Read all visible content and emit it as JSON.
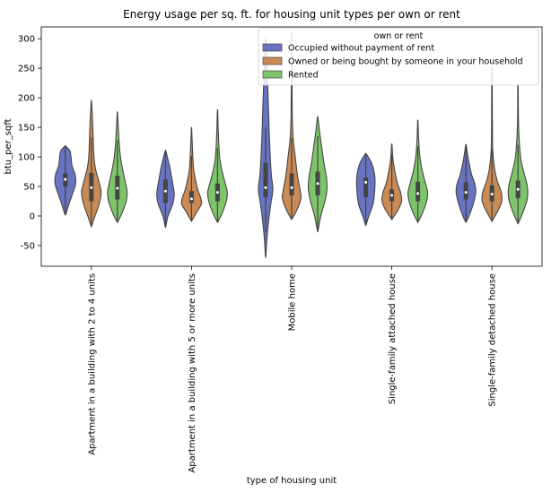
{
  "chart_data": {
    "type": "violin",
    "title": "Energy usage per sq. ft. for housing unit types per own or rent",
    "xlabel": "type of housing unit",
    "ylabel": "btu_per_sqft",
    "ylim": [
      -85,
      320
    ],
    "yticks": [
      -50,
      0,
      50,
      100,
      150,
      200,
      250,
      300
    ],
    "categories": [
      "Apartment in a building with 2 to 4 units",
      "Apartment in a building with 5 or more units",
      "Mobile home",
      "Single-family attached house",
      "Single-family detached house"
    ],
    "legend": {
      "title": "own or rent",
      "placement": "top-right"
    },
    "series": [
      {
        "name": "Occupied without payment of rent",
        "color": "#6873c2",
        "stats": [
          {
            "min": 3,
            "max": 118,
            "q1": 50,
            "median": 62,
            "q3": 72
          },
          {
            "min": -18,
            "max": 110,
            "q1": 22,
            "median": 42,
            "q3": 62
          },
          {
            "min": -68,
            "max": 300,
            "q1": 32,
            "median": 48,
            "q3": 90
          },
          {
            "min": -15,
            "max": 105,
            "q1": 32,
            "median": 57,
            "q3": 65
          },
          {
            "min": -10,
            "max": 120,
            "q1": 28,
            "median": 40,
            "q3": 57
          }
        ],
        "shape": [
          [
            [
              3,
              0.05
            ],
            [
              20,
              0.35
            ],
            [
              40,
              0.75
            ],
            [
              55,
              1.0
            ],
            [
              70,
              0.95
            ],
            [
              85,
              0.65
            ],
            [
              100,
              0.55
            ],
            [
              110,
              0.45
            ],
            [
              118,
              0.05
            ]
          ],
          [
            [
              -18,
              0.03
            ],
            [
              0,
              0.25
            ],
            [
              20,
              0.7
            ],
            [
              35,
              0.85
            ],
            [
              50,
              0.75
            ],
            [
              65,
              0.6
            ],
            [
              80,
              0.45
            ],
            [
              95,
              0.25
            ],
            [
              110,
              0.03
            ]
          ],
          [
            [
              -68,
              0.02
            ],
            [
              -40,
              0.12
            ],
            [
              -10,
              0.28
            ],
            [
              20,
              0.5
            ],
            [
              45,
              0.7
            ],
            [
              70,
              0.55
            ],
            [
              100,
              0.45
            ],
            [
              140,
              0.35
            ],
            [
              180,
              0.28
            ],
            [
              220,
              0.2
            ],
            [
              260,
              0.12
            ],
            [
              300,
              0.02
            ]
          ],
          [
            [
              -15,
              0.03
            ],
            [
              0,
              0.3
            ],
            [
              20,
              0.7
            ],
            [
              40,
              0.85
            ],
            [
              60,
              0.9
            ],
            [
              75,
              0.8
            ],
            [
              90,
              0.55
            ],
            [
              105,
              0.05
            ]
          ],
          [
            [
              -10,
              0.03
            ],
            [
              0,
              0.3
            ],
            [
              20,
              0.7
            ],
            [
              40,
              0.95
            ],
            [
              55,
              0.85
            ],
            [
              70,
              0.55
            ],
            [
              90,
              0.3
            ],
            [
              105,
              0.15
            ],
            [
              120,
              0.03
            ]
          ]
        ]
      },
      {
        "name": "Owned or being bought by someone in your household",
        "color": "#c98a55",
        "stats": [
          {
            "min": -17,
            "max": 193,
            "q1": 25,
            "median": 48,
            "q3": 73
          },
          {
            "min": -8,
            "max": 147,
            "q1": 22,
            "median": 29,
            "q3": 42
          },
          {
            "min": -5,
            "max": 305,
            "q1": 35,
            "median": 48,
            "q3": 72
          },
          {
            "min": -5,
            "max": 120,
            "q1": 25,
            "median": 35,
            "q3": 45
          },
          {
            "min": -8,
            "max": 245,
            "q1": 25,
            "median": 37,
            "q3": 52
          }
        ],
        "shape": [
          [
            [
              -17,
              0.02
            ],
            [
              0,
              0.35
            ],
            [
              20,
              0.75
            ],
            [
              40,
              0.95
            ],
            [
              60,
              0.7
            ],
            [
              80,
              0.4
            ],
            [
              100,
              0.25
            ],
            [
              130,
              0.18
            ],
            [
              160,
              0.12
            ],
            [
              193,
              0.02
            ]
          ],
          [
            [
              -8,
              0.03
            ],
            [
              5,
              0.45
            ],
            [
              20,
              0.95
            ],
            [
              30,
              0.9
            ],
            [
              45,
              0.6
            ],
            [
              60,
              0.4
            ],
            [
              80,
              0.2
            ],
            [
              110,
              0.1
            ],
            [
              147,
              0.02
            ]
          ],
          [
            [
              -5,
              0.03
            ],
            [
              10,
              0.5
            ],
            [
              30,
              0.9
            ],
            [
              50,
              0.75
            ],
            [
              70,
              0.55
            ],
            [
              100,
              0.35
            ],
            [
              130,
              0.15
            ],
            [
              170,
              0.06
            ],
            [
              240,
              0.03
            ],
            [
              305,
              0.02
            ]
          ],
          [
            [
              -5,
              0.03
            ],
            [
              10,
              0.6
            ],
            [
              25,
              0.95
            ],
            [
              40,
              0.85
            ],
            [
              55,
              0.55
            ],
            [
              75,
              0.3
            ],
            [
              95,
              0.12
            ],
            [
              120,
              0.02
            ]
          ],
          [
            [
              -8,
              0.03
            ],
            [
              10,
              0.6
            ],
            [
              25,
              0.95
            ],
            [
              40,
              0.9
            ],
            [
              60,
              0.5
            ],
            [
              80,
              0.25
            ],
            [
              110,
              0.08
            ],
            [
              160,
              0.04
            ],
            [
              245,
              0.02
            ]
          ]
        ]
      },
      {
        "name": "Rented",
        "color": "#7dc46a",
        "stats": [
          {
            "min": -10,
            "max": 173,
            "q1": 28,
            "median": 47,
            "q3": 68
          },
          {
            "min": -10,
            "max": 177,
            "q1": 25,
            "median": 40,
            "q3": 55
          },
          {
            "min": -25,
            "max": 166,
            "q1": 35,
            "median": 55,
            "q3": 75
          },
          {
            "min": -10,
            "max": 160,
            "q1": 25,
            "median": 38,
            "q3": 58
          },
          {
            "min": -12,
            "max": 220,
            "q1": 30,
            "median": 45,
            "q3": 60
          }
        ],
        "shape": [
          [
            [
              -10,
              0.03
            ],
            [
              5,
              0.45
            ],
            [
              25,
              0.85
            ],
            [
              40,
              0.95
            ],
            [
              55,
              0.8
            ],
            [
              75,
              0.55
            ],
            [
              100,
              0.3
            ],
            [
              130,
              0.15
            ],
            [
              173,
              0.02
            ]
          ],
          [
            [
              -10,
              0.03
            ],
            [
              5,
              0.45
            ],
            [
              25,
              0.85
            ],
            [
              40,
              0.95
            ],
            [
              55,
              0.75
            ],
            [
              75,
              0.45
            ],
            [
              100,
              0.2
            ],
            [
              140,
              0.08
            ],
            [
              177,
              0.02
            ]
          ],
          [
            [
              -25,
              0.03
            ],
            [
              0,
              0.3
            ],
            [
              25,
              0.7
            ],
            [
              45,
              0.9
            ],
            [
              65,
              0.85
            ],
            [
              90,
              0.6
            ],
            [
              115,
              0.4
            ],
            [
              140,
              0.2
            ],
            [
              166,
              0.03
            ]
          ],
          [
            [
              -10,
              0.03
            ],
            [
              5,
              0.45
            ],
            [
              25,
              0.85
            ],
            [
              40,
              0.95
            ],
            [
              55,
              0.75
            ],
            [
              75,
              0.45
            ],
            [
              100,
              0.2
            ],
            [
              130,
              0.08
            ],
            [
              160,
              0.02
            ]
          ],
          [
            [
              -12,
              0.03
            ],
            [
              5,
              0.45
            ],
            [
              25,
              0.85
            ],
            [
              40,
              0.95
            ],
            [
              55,
              0.85
            ],
            [
              75,
              0.55
            ],
            [
              100,
              0.25
            ],
            [
              150,
              0.06
            ],
            [
              220,
              0.02
            ]
          ]
        ]
      }
    ]
  }
}
